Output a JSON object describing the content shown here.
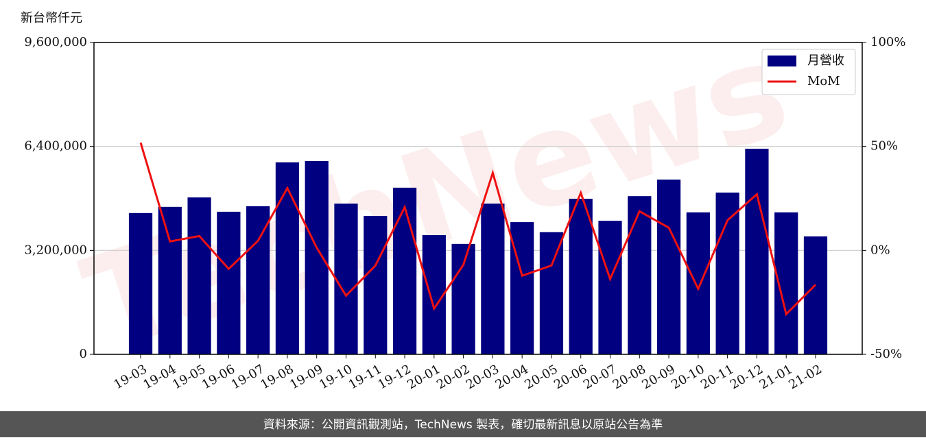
{
  "chart_data": {
    "type": "bar",
    "unit_label": "新台幣仟元",
    "watermark": "TechNews",
    "categories": [
      "19-03",
      "19-04",
      "19-05",
      "19-06",
      "19-07",
      "19-08",
      "19-09",
      "19-10",
      "19-11",
      "19-12",
      "20-01",
      "20-02",
      "20-03",
      "20-04",
      "20-05",
      "20-06",
      "20-07",
      "20-08",
      "20-09",
      "20-10",
      "20-11",
      "20-12",
      "21-01",
      "21-02"
    ],
    "series": [
      {
        "name": "月營收",
        "type": "bar",
        "color": "#000080",
        "values": [
          4350000,
          4540000,
          4830000,
          4390000,
          4560000,
          5910000,
          5950000,
          4640000,
          4260000,
          5130000,
          3670000,
          3400000,
          4640000,
          4070000,
          3760000,
          4790000,
          4110000,
          4870000,
          5380000,
          4370000,
          4980000,
          6330000,
          4370000,
          3630000
        ]
      },
      {
        "name": "MoM",
        "type": "line",
        "color": "#ee1111",
        "axis": "y2",
        "values": [
          51.8,
          4.3,
          6.9,
          -8.9,
          4.6,
          30.0,
          1.3,
          -21.8,
          -7.3,
          20.8,
          -28.0,
          -6.9,
          37.3,
          -12.2,
          -7.3,
          27.7,
          -13.8,
          18.8,
          10.9,
          -18.5,
          14.5,
          27.0,
          -30.7,
          -16.5
        ]
      }
    ],
    "ylim": [
      0,
      9600000
    ],
    "yticks": [
      0,
      {
        "value": 3200000,
        "label": "3,200,000"
      },
      {
        "value": 6400000,
        "label": "6,400,000"
      },
      {
        "value": 9600000,
        "label": "9,600,000"
      }
    ],
    "y2lim": [
      -50,
      100
    ],
    "y2ticks": [
      {
        "value": -50,
        "label": "-50%"
      },
      {
        "value": 0,
        "label": "0%"
      },
      {
        "value": 50,
        "label": "50%"
      },
      {
        "value": 100,
        "label": "100%"
      }
    ],
    "grid": true,
    "legend": "upper right"
  },
  "footer": "資料來源：公開資訊觀測站，TechNews 製表，確切最新訊息以原站公告為準"
}
